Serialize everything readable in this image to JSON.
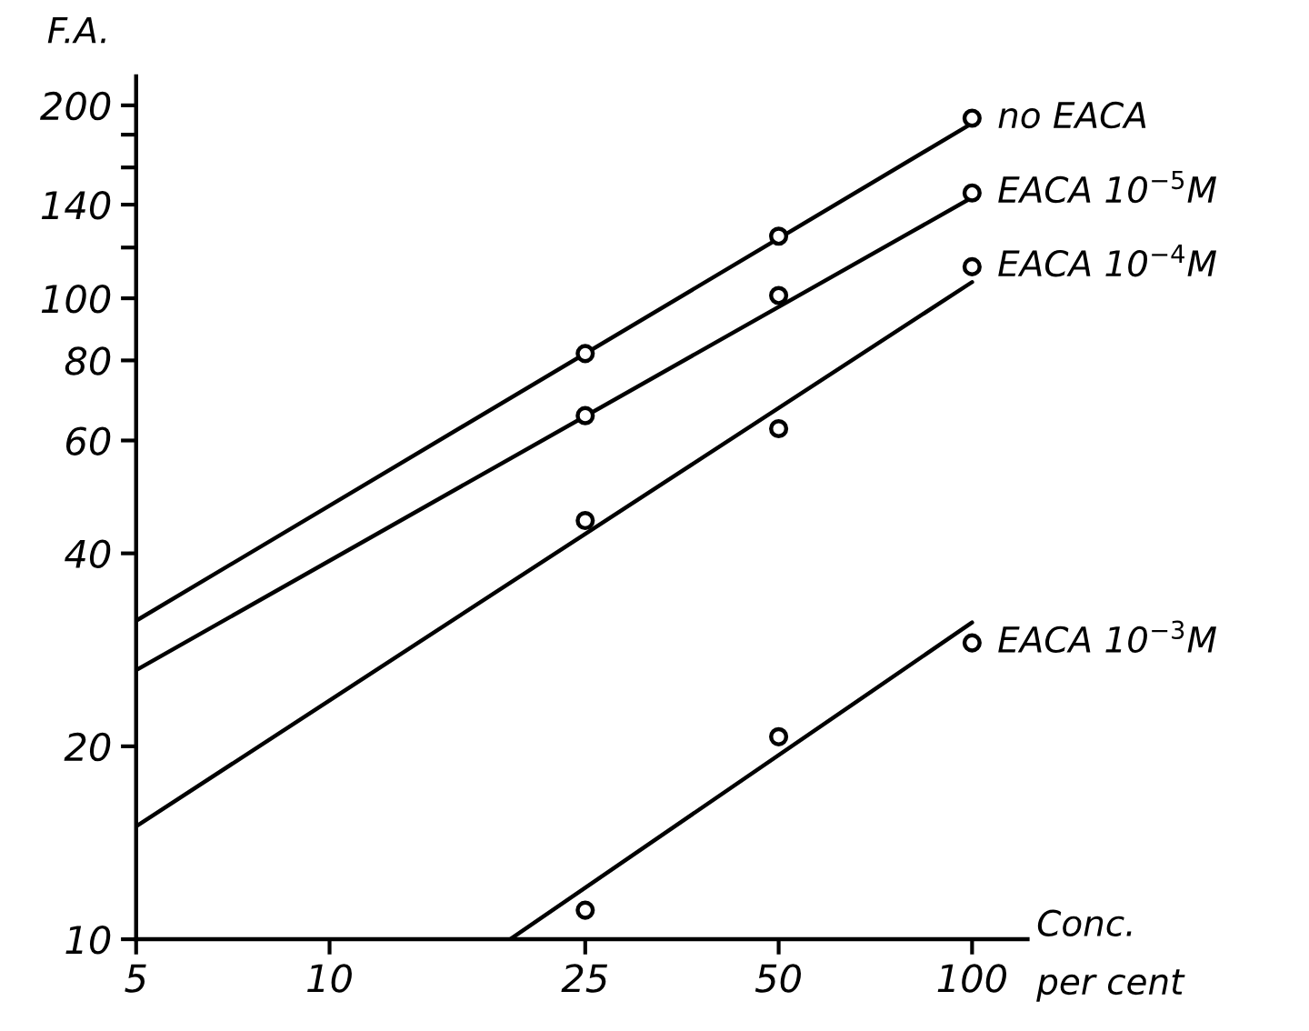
{
  "chart_data": {
    "type": "scatter",
    "ylabel": "F.A.",
    "xlabel": "Conc.\nper cent",
    "log": "xy",
    "grid": false,
    "legend": false,
    "marker": "circle",
    "xlim": [
      5,
      122
    ],
    "xticks": [
      5,
      10,
      25,
      50,
      100
    ],
    "ylim": [
      10,
      222
    ],
    "yticks": [
      10,
      20,
      40,
      60,
      80,
      100,
      {
        "value": 120,
        "label": null
      },
      140,
      {
        "value": 160,
        "label": null
      },
      {
        "value": 180,
        "label": null
      },
      200
    ],
    "series": [
      {
        "type": "line",
        "marker": "none",
        "color": "#000000",
        "x": [
          5,
          100
        ],
        "values": [
          31.4,
          187.5
        ]
      },
      {
        "type": "line",
        "marker": "none",
        "color": "#000000",
        "x": [
          5,
          100
        ],
        "values": [
          26.3,
          143.6
        ]
      },
      {
        "type": "line",
        "marker": "none",
        "color": "#000000",
        "x": [
          5,
          100
        ],
        "values": [
          15.0,
          106
        ]
      },
      {
        "type": "line",
        "marker": "none",
        "color": "#000000",
        "x": [
          19.1,
          100
        ],
        "values": [
          10,
          31.2
        ]
      },
      {
        "name": "no EACA",
        "color": "#000000",
        "x": [
          25,
          50,
          100
        ],
        "values": [
          82,
          125,
          191
        ]
      },
      {
        "name": "EACA 10$^{−5}$M",
        "color": "#000000",
        "x": [
          25,
          50,
          100
        ],
        "values": [
          65.6,
          101,
          146
        ]
      },
      {
        "name": "EACA 10$^{−4}$M",
        "color": "#000000",
        "x": [
          25,
          50,
          100
        ],
        "values": [
          45,
          62.6,
          112
        ]
      },
      {
        "name": "EACA 10$^{−3}$M",
        "color": "#000000",
        "x": [
          25,
          50,
          100
        ],
        "values": [
          11.1,
          20.7,
          29
        ]
      }
    ]
  }
}
